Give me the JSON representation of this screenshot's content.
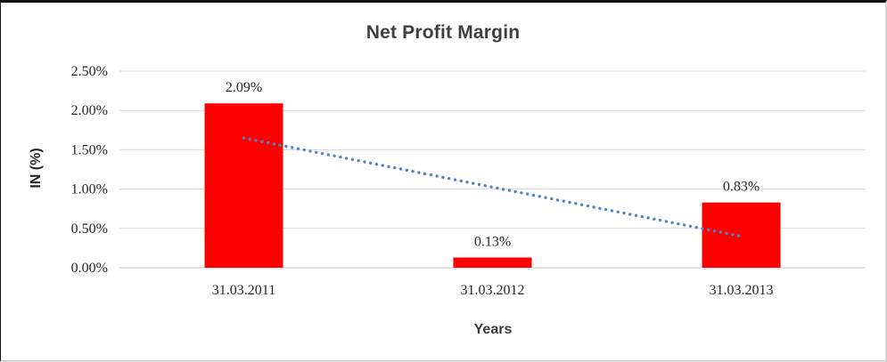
{
  "chart_data": {
    "type": "bar",
    "title": "Net Profit Margin",
    "xlabel": "Years",
    "ylabel": "IN (%)",
    "categories": [
      "31.03.2011",
      "31.03.2012",
      "31.03.2013"
    ],
    "values": [
      2.09,
      0.13,
      0.83
    ],
    "data_labels": [
      "2.09%",
      "0.13%",
      "0.83%"
    ],
    "y_ticks": [
      "0.00%",
      "0.50%",
      "1.00%",
      "1.50%",
      "2.00%",
      "2.50%"
    ],
    "y_tick_step": 0.5,
    "ylim": [
      0,
      2.5
    ],
    "grid": true,
    "legend": false,
    "trendline": {
      "type": "linear",
      "style": "dotted",
      "start_value": 1.65,
      "end_value": 0.4,
      "color": "#4e86c8"
    },
    "colors": {
      "bar": "#ff0000",
      "trendline": "#4e86c8",
      "gridline": "#d9d9d9",
      "baseline": "#c6c6c6",
      "text": "#262626",
      "title": "#3f3f3f"
    }
  }
}
